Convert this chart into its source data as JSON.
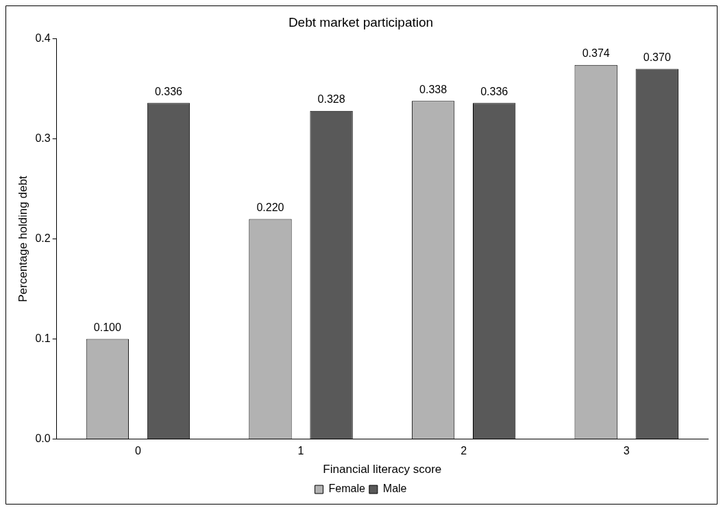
{
  "chart_data": {
    "type": "bar",
    "title": "Debt market participation",
    "xlabel": "Financial literacy score",
    "ylabel": "Percentage holding debt",
    "categories": [
      "0",
      "1",
      "2",
      "3"
    ],
    "series": [
      {
        "name": "Female",
        "color": "#b2b2b2",
        "values": [
          0.1,
          0.22,
          0.338,
          0.374
        ],
        "value_labels": [
          "0.100",
          "0.220",
          "0.338",
          "0.374"
        ]
      },
      {
        "name": "Male",
        "color": "#595959",
        "values": [
          0.336,
          0.328,
          0.336,
          0.37
        ],
        "value_labels": [
          "0.336",
          "0.328",
          "0.336",
          "0.370"
        ]
      }
    ],
    "ylim": [
      0,
      0.4
    ],
    "yticks": [
      {
        "value": 0,
        "label": "0.0"
      },
      0.1,
      0.2,
      0.3,
      0.4
    ],
    "grid": false,
    "legend": "bottom"
  }
}
